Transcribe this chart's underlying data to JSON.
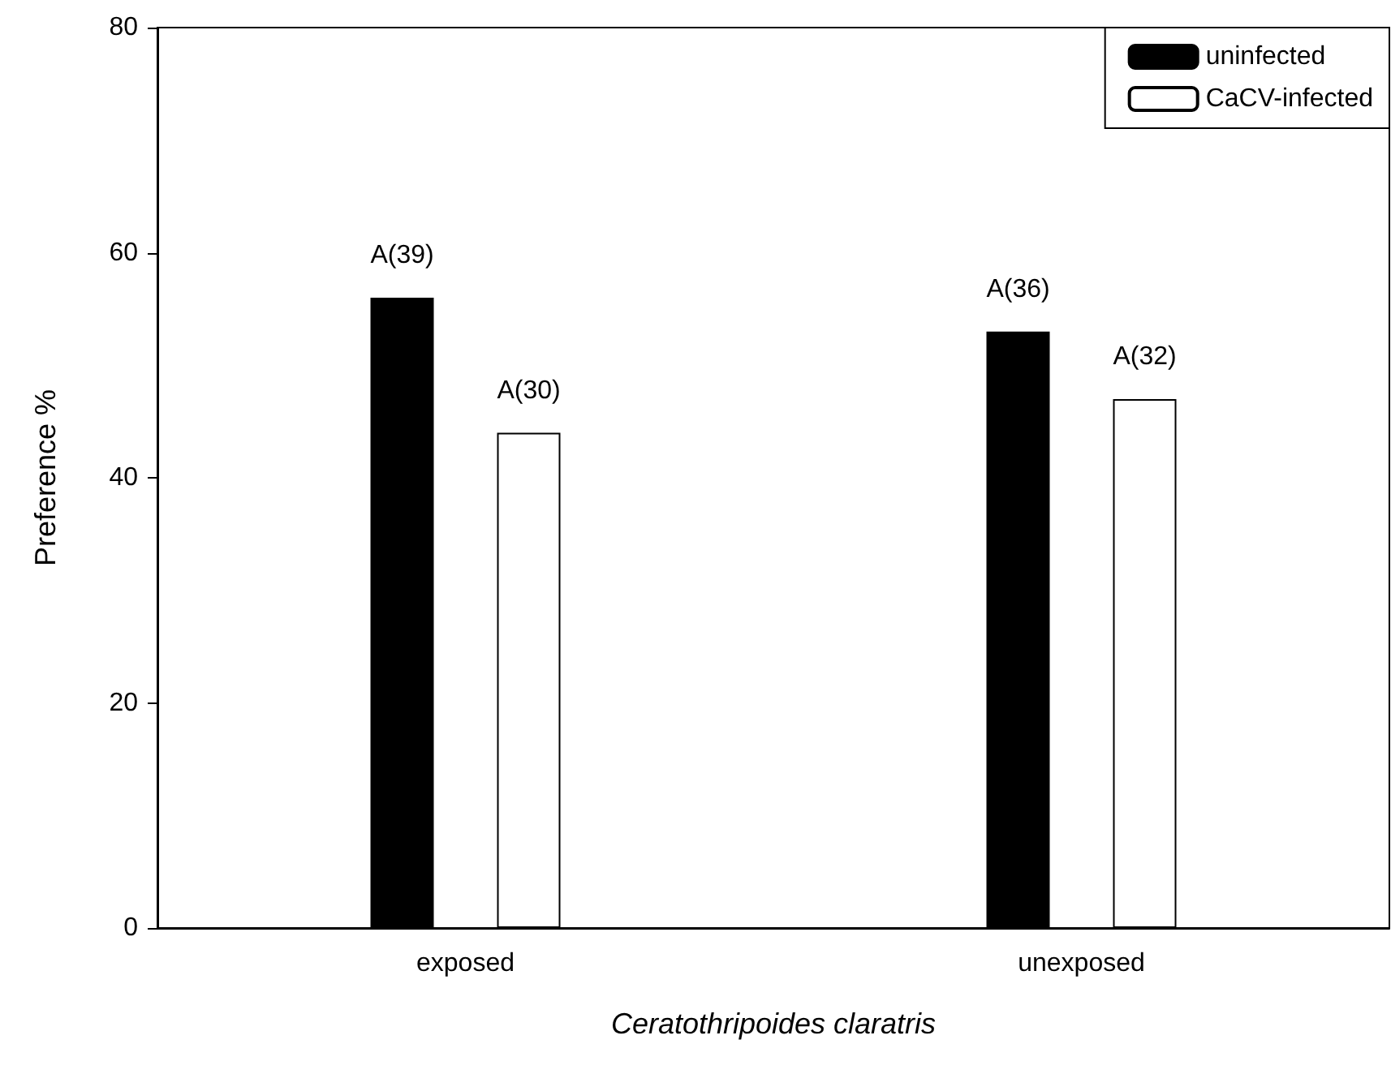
{
  "chart_data": {
    "type": "bar",
    "xlabel": "Ceratothripoides claratris",
    "ylabel": "Preference %",
    "categories": [
      "exposed",
      "unexposed"
    ],
    "series": [
      {
        "name": "uninfected",
        "color": "#000000",
        "values": [
          56,
          53
        ],
        "value_labels": [
          "A(39)",
          "A(36)"
        ]
      },
      {
        "name": "CaCV-infected",
        "color": "#ffffff",
        "values": [
          44,
          47
        ],
        "value_labels": [
          "A(30)",
          "A(32)"
        ]
      }
    ],
    "ylim": [
      0,
      80
    ],
    "yticks": [
      0,
      20,
      40,
      60,
      80
    ],
    "grid": false,
    "legend": "top right"
  }
}
